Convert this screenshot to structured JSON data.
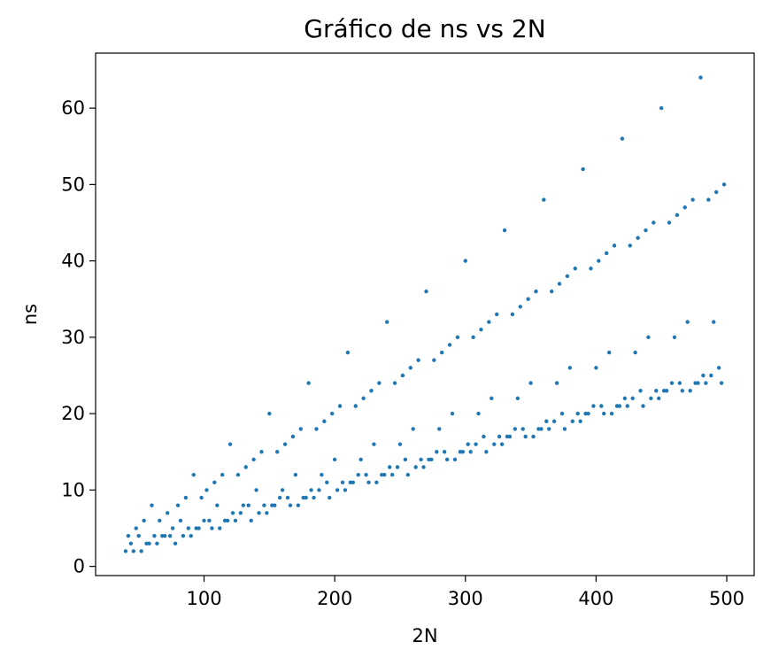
{
  "chart_data": {
    "type": "scatter",
    "title": "Gráfico de ns vs 2N",
    "xlabel": "2N",
    "ylabel": "ns",
    "xlim": [
      17,
      521
    ],
    "ylim": [
      -1.2,
      67.2
    ],
    "xticks": [
      100,
      200,
      300,
      400,
      500
    ],
    "yticks": [
      0,
      10,
      20,
      30,
      40,
      50,
      60
    ],
    "grid": false,
    "legend": "none",
    "series": [
      {
        "color": "#1f77b4",
        "points": [
          [
            40,
            2
          ],
          [
            42,
            4
          ],
          [
            44,
            3
          ],
          [
            46,
            2
          ],
          [
            48,
            5
          ],
          [
            50,
            4
          ],
          [
            52,
            2
          ],
          [
            54,
            6
          ],
          [
            56,
            3
          ],
          [
            58,
            3
          ],
          [
            60,
            8
          ],
          [
            62,
            4
          ],
          [
            64,
            3
          ],
          [
            66,
            6
          ],
          [
            68,
            4
          ],
          [
            70,
            4
          ],
          [
            72,
            7
          ],
          [
            74,
            4
          ],
          [
            76,
            5
          ],
          [
            78,
            3
          ],
          [
            80,
            8
          ],
          [
            82,
            6
          ],
          [
            84,
            4
          ],
          [
            86,
            9
          ],
          [
            88,
            5
          ],
          [
            90,
            4
          ],
          [
            92,
            12
          ],
          [
            94,
            5
          ],
          [
            96,
            5
          ],
          [
            98,
            9
          ],
          [
            100,
            6
          ],
          [
            102,
            10
          ],
          [
            104,
            6
          ],
          [
            106,
            5
          ],
          [
            108,
            11
          ],
          [
            110,
            8
          ],
          [
            112,
            5
          ],
          [
            114,
            12
          ],
          [
            116,
            6
          ],
          [
            118,
            6
          ],
          [
            120,
            16
          ],
          [
            122,
            7
          ],
          [
            124,
            6
          ],
          [
            126,
            12
          ],
          [
            128,
            7
          ],
          [
            130,
            8
          ],
          [
            132,
            13
          ],
          [
            134,
            8
          ],
          [
            136,
            6
          ],
          [
            138,
            14
          ],
          [
            140,
            10
          ],
          [
            142,
            7
          ],
          [
            144,
            15
          ],
          [
            146,
            8
          ],
          [
            148,
            7
          ],
          [
            150,
            20
          ],
          [
            152,
            8
          ],
          [
            154,
            8
          ],
          [
            156,
            15
          ],
          [
            158,
            9
          ],
          [
            160,
            10
          ],
          [
            162,
            16
          ],
          [
            164,
            9
          ],
          [
            166,
            8
          ],
          [
            168,
            17
          ],
          [
            170,
            12
          ],
          [
            172,
            8
          ],
          [
            174,
            18
          ],
          [
            176,
            9
          ],
          [
            178,
            9
          ],
          [
            180,
            24
          ],
          [
            182,
            10
          ],
          [
            184,
            9
          ],
          [
            186,
            18
          ],
          [
            188,
            10
          ],
          [
            190,
            12
          ],
          [
            192,
            19
          ],
          [
            194,
            11
          ],
          [
            196,
            9
          ],
          [
            198,
            20
          ],
          [
            200,
            14
          ],
          [
            202,
            10
          ],
          [
            204,
            21
          ],
          [
            206,
            11
          ],
          [
            208,
            10
          ],
          [
            210,
            28
          ],
          [
            212,
            11
          ],
          [
            214,
            11
          ],
          [
            216,
            21
          ],
          [
            218,
            12
          ],
          [
            220,
            14
          ],
          [
            222,
            22
          ],
          [
            224,
            12
          ],
          [
            226,
            11
          ],
          [
            228,
            23
          ],
          [
            230,
            16
          ],
          [
            232,
            11
          ],
          [
            234,
            24
          ],
          [
            236,
            12
          ],
          [
            238,
            12
          ],
          [
            240,
            32
          ],
          [
            242,
            13
          ],
          [
            244,
            12
          ],
          [
            246,
            24
          ],
          [
            248,
            13
          ],
          [
            250,
            16
          ],
          [
            252,
            25
          ],
          [
            254,
            14
          ],
          [
            256,
            12
          ],
          [
            258,
            26
          ],
          [
            260,
            18
          ],
          [
            262,
            13
          ],
          [
            264,
            27
          ],
          [
            266,
            14
          ],
          [
            268,
            13
          ],
          [
            270,
            36
          ],
          [
            272,
            14
          ],
          [
            274,
            14
          ],
          [
            276,
            27
          ],
          [
            278,
            15
          ],
          [
            280,
            18
          ],
          [
            282,
            28
          ],
          [
            284,
            15
          ],
          [
            286,
            14
          ],
          [
            288,
            29
          ],
          [
            290,
            20
          ],
          [
            292,
            14
          ],
          [
            294,
            30
          ],
          [
            296,
            15
          ],
          [
            298,
            15
          ],
          [
            300,
            40
          ],
          [
            302,
            16
          ],
          [
            304,
            15
          ],
          [
            306,
            30
          ],
          [
            308,
            16
          ],
          [
            310,
            20
          ],
          [
            312,
            31
          ],
          [
            314,
            17
          ],
          [
            316,
            15
          ],
          [
            318,
            32
          ],
          [
            320,
            22
          ],
          [
            322,
            16
          ],
          [
            324,
            33
          ],
          [
            326,
            17
          ],
          [
            328,
            16
          ],
          [
            330,
            44
          ],
          [
            332,
            17
          ],
          [
            334,
            17
          ],
          [
            336,
            33
          ],
          [
            338,
            18
          ],
          [
            340,
            22
          ],
          [
            342,
            34
          ],
          [
            344,
            18
          ],
          [
            346,
            17
          ],
          [
            348,
            35
          ],
          [
            350,
            24
          ],
          [
            352,
            17
          ],
          [
            354,
            36
          ],
          [
            356,
            18
          ],
          [
            358,
            18
          ],
          [
            360,
            48
          ],
          [
            362,
            19
          ],
          [
            364,
            18
          ],
          [
            366,
            36
          ],
          [
            368,
            19
          ],
          [
            370,
            24
          ],
          [
            372,
            37
          ],
          [
            374,
            20
          ],
          [
            376,
            18
          ],
          [
            378,
            38
          ],
          [
            380,
            26
          ],
          [
            382,
            19
          ],
          [
            384,
            39
          ],
          [
            386,
            20
          ],
          [
            388,
            19
          ],
          [
            390,
            52
          ],
          [
            392,
            20
          ],
          [
            394,
            20
          ],
          [
            396,
            39
          ],
          [
            398,
            21
          ],
          [
            400,
            26
          ],
          [
            402,
            40
          ],
          [
            404,
            21
          ],
          [
            406,
            20
          ],
          [
            408,
            41
          ],
          [
            410,
            28
          ],
          [
            412,
            20
          ],
          [
            414,
            42
          ],
          [
            416,
            21
          ],
          [
            418,
            21
          ],
          [
            420,
            56
          ],
          [
            422,
            22
          ],
          [
            424,
            21
          ],
          [
            426,
            42
          ],
          [
            428,
            22
          ],
          [
            430,
            28
          ],
          [
            432,
            43
          ],
          [
            434,
            23
          ],
          [
            436,
            21
          ],
          [
            438,
            44
          ],
          [
            440,
            30
          ],
          [
            442,
            22
          ],
          [
            444,
            45
          ],
          [
            446,
            23
          ],
          [
            448,
            22
          ],
          [
            450,
            60
          ],
          [
            452,
            23
          ],
          [
            454,
            23
          ],
          [
            456,
            45
          ],
          [
            458,
            24
          ],
          [
            460,
            30
          ],
          [
            462,
            46
          ],
          [
            464,
            24
          ],
          [
            466,
            23
          ],
          [
            468,
            47
          ],
          [
            470,
            32
          ],
          [
            472,
            23
          ],
          [
            474,
            48
          ],
          [
            476,
            24
          ],
          [
            478,
            24
          ],
          [
            480,
            64
          ],
          [
            482,
            25
          ],
          [
            484,
            24
          ],
          [
            486,
            48
          ],
          [
            488,
            25
          ],
          [
            490,
            32
          ],
          [
            492,
            49
          ],
          [
            494,
            26
          ],
          [
            496,
            24
          ],
          [
            498,
            50
          ]
        ]
      }
    ]
  }
}
